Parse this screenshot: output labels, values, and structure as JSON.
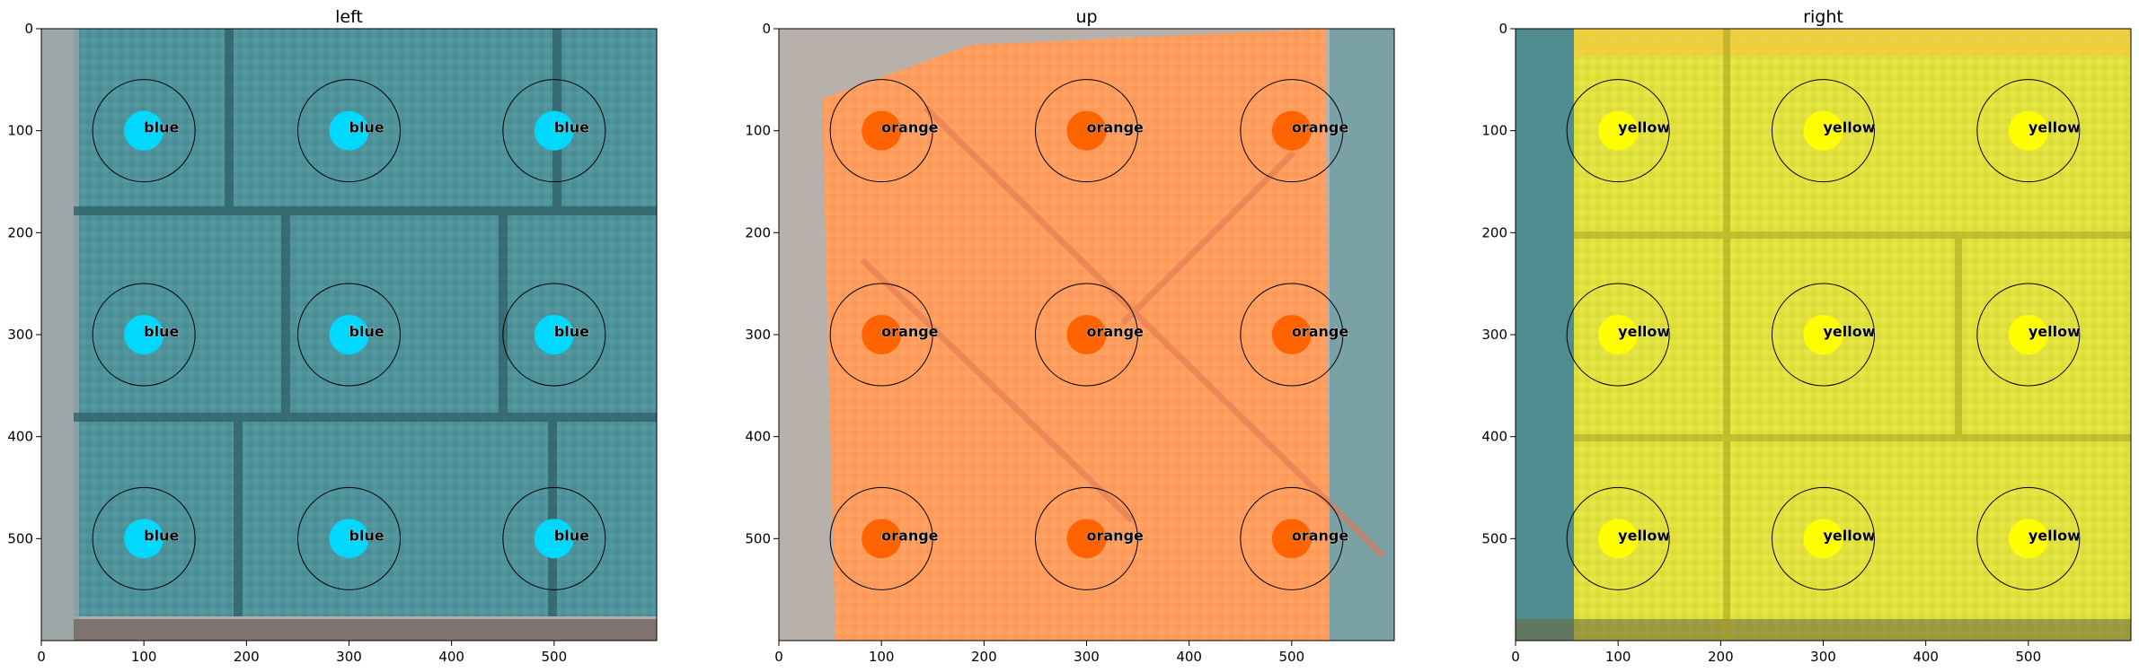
{
  "chart_data": [
    {
      "type": "image-grid",
      "title": "left",
      "image_color": "#4a8f97",
      "xlim": [
        0,
        600
      ],
      "ylim": [
        600,
        0
      ],
      "xticks": [
        0,
        100,
        200,
        300,
        400,
        500
      ],
      "yticks": [
        0,
        100,
        200,
        300,
        400,
        500
      ],
      "markers": [
        {
          "x": 100,
          "y": 100,
          "label": "blue",
          "color": "#00d8ff"
        },
        {
          "x": 300,
          "y": 100,
          "label": "blue",
          "color": "#00d8ff"
        },
        {
          "x": 500,
          "y": 100,
          "label": "blue",
          "color": "#00d8ff"
        },
        {
          "x": 100,
          "y": 300,
          "label": "blue",
          "color": "#00d8ff"
        },
        {
          "x": 300,
          "y": 300,
          "label": "blue",
          "color": "#00d8ff"
        },
        {
          "x": 500,
          "y": 300,
          "label": "blue",
          "color": "#00d8ff"
        },
        {
          "x": 100,
          "y": 500,
          "label": "blue",
          "color": "#00d8ff"
        },
        {
          "x": 300,
          "y": 500,
          "label": "blue",
          "color": "#00d8ff"
        },
        {
          "x": 500,
          "y": 500,
          "label": "blue",
          "color": "#00d8ff"
        }
      ]
    },
    {
      "type": "image-grid",
      "title": "up",
      "image_color": "#ff9a5a",
      "xlim": [
        0,
        600
      ],
      "ylim": [
        600,
        0
      ],
      "xticks": [
        0,
        100,
        200,
        300,
        400,
        500
      ],
      "yticks": [
        0,
        100,
        200,
        300,
        400,
        500
      ],
      "markers": [
        {
          "x": 100,
          "y": 100,
          "label": "orange",
          "color": "#ff6400"
        },
        {
          "x": 300,
          "y": 100,
          "label": "orange",
          "color": "#ff6400"
        },
        {
          "x": 500,
          "y": 100,
          "label": "orange",
          "color": "#ff6400"
        },
        {
          "x": 100,
          "y": 300,
          "label": "orange",
          "color": "#ff6400"
        },
        {
          "x": 300,
          "y": 300,
          "label": "orange",
          "color": "#ff6400"
        },
        {
          "x": 500,
          "y": 300,
          "label": "orange",
          "color": "#ff6400"
        },
        {
          "x": 100,
          "y": 500,
          "label": "orange",
          "color": "#ff6400"
        },
        {
          "x": 300,
          "y": 500,
          "label": "orange",
          "color": "#ff6400"
        },
        {
          "x": 500,
          "y": 500,
          "label": "orange",
          "color": "#ff6400"
        }
      ]
    },
    {
      "type": "image-grid",
      "title": "right",
      "image_color": "#e0e03a",
      "xlim": [
        0,
        600
      ],
      "ylim": [
        600,
        0
      ],
      "xticks": [
        0,
        100,
        200,
        300,
        400,
        500
      ],
      "yticks": [
        0,
        100,
        200,
        300,
        400,
        500
      ],
      "markers": [
        {
          "x": 100,
          "y": 100,
          "label": "yellow",
          "color": "#ffff00"
        },
        {
          "x": 300,
          "y": 100,
          "label": "yellow",
          "color": "#ffff00"
        },
        {
          "x": 500,
          "y": 100,
          "label": "yellow",
          "color": "#ffff00"
        },
        {
          "x": 100,
          "y": 300,
          "label": "yellow",
          "color": "#ffff00"
        },
        {
          "x": 300,
          "y": 300,
          "label": "yellow",
          "color": "#ffff00"
        },
        {
          "x": 500,
          "y": 300,
          "label": "yellow",
          "color": "#ffff00"
        },
        {
          "x": 100,
          "y": 500,
          "label": "yellow",
          "color": "#ffff00"
        },
        {
          "x": 300,
          "y": 500,
          "label": "yellow",
          "color": "#ffff00"
        },
        {
          "x": 500,
          "y": 500,
          "label": "yellow",
          "color": "#ffff00"
        }
      ]
    }
  ]
}
